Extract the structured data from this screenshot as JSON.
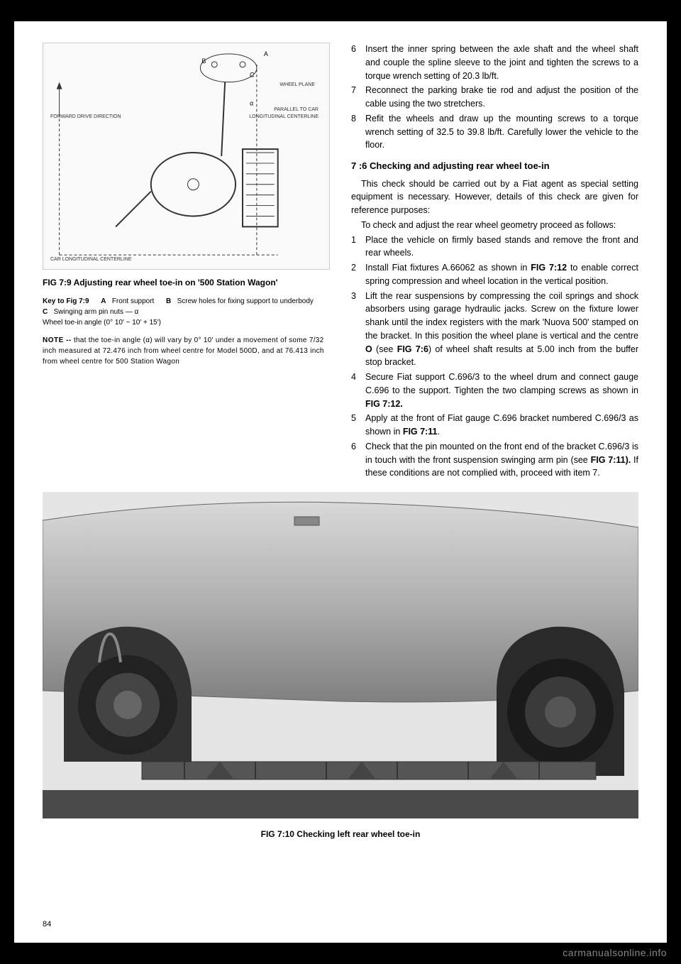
{
  "fig79": {
    "diagram_labels": {
      "wheel_plane": "WHEEL PLANE",
      "parallel": "PARALLEL TO CAR",
      "long_centerline": "LONGITUDINAL CENTERLINE",
      "forward": "FORWARD DRIVE DIRECTION",
      "car_long": "CAR LONGITUDINAL CENTERLINE",
      "a": "A",
      "b": "B",
      "c": "C"
    },
    "caption": "FIG 7:9   Adjusting rear wheel toe-in on '500 Station Wagon'",
    "key_prefix": "Key to Fig 7:9",
    "key_a_label": "A",
    "key_a_text": "Front support",
    "key_b_label": "B",
    "key_b_text": "Screw holes for fixing support to underbody",
    "key_c_label": "C",
    "key_c_text": "Swinging arm pin nuts — α",
    "key_wheel": "Wheel toe-in angle (0° 10′ − 10′ + 15′)",
    "note_label": "NOTE --",
    "note_text": "that the toe-in angle (α) will vary by 0° 10' under a movement of some 7/32 inch measured at 72.476 inch from wheel centre for Model 500D, and at 76.413 inch from wheel centre for 500 Station Wagon"
  },
  "right_column": {
    "items_top": [
      {
        "num": "6",
        "text": "Insert the inner spring between the axle shaft and the wheel shaft and couple the spline sleeve to the joint and tighten the screws to a torque wrench setting of 20.3 lb/ft."
      },
      {
        "num": "7",
        "text": "Reconnect the parking brake tie rod and adjust the position of the cable using the two stretchers."
      },
      {
        "num": "8",
        "text": "Refit the wheels and draw up the mounting screws to a torque wrench setting of 32.5 to 39.8 lb/ft. Carefully lower the vehicle to the floor."
      }
    ],
    "section_head": "7 :6   Checking and adjusting rear wheel toe-in",
    "intro1": "This check should be carried out by a Fiat agent as special setting equipment is necessary. However, details of this check are given for reference purposes:",
    "intro2": "To check and adjust the rear wheel geometry proceed as follows:",
    "items_bottom": [
      {
        "num": "1",
        "text": "Place the vehicle on firmly based stands and remove the front and rear wheels."
      },
      {
        "num": "2",
        "text_parts": [
          "Install Fiat fixtures A.66062 as shown in ",
          {
            "b": "FIG 7:12"
          },
          " to enable correct spring compression and wheel location in the vertical position."
        ]
      },
      {
        "num": "3",
        "text_parts": [
          "Lift the rear suspensions by compressing the coil springs and shock absorbers using garage hydraulic jacks. Screw on the fixture lower shank until the index registers with the mark 'Nuova 500' stamped on the bracket. In this position the wheel plane is vertical and the centre ",
          {
            "b": "O"
          },
          " (see ",
          {
            "b": "FIG 7:6"
          },
          ") of wheel shaft results at 5.00 inch from the buffer stop bracket."
        ]
      },
      {
        "num": "4",
        "text_parts": [
          "Secure Fiat support C.696/3 to the wheel drum and connect gauge C.696 to the support. Tighten the two clamping screws as shown in ",
          {
            "b": "FIG 7:12."
          }
        ]
      },
      {
        "num": "5",
        "text_parts": [
          "Apply at the front of Fiat gauge C.696 bracket numbered C.696/3 as shown in ",
          {
            "b": "FIG 7:11"
          },
          "."
        ]
      },
      {
        "num": "6",
        "text_parts": [
          "Check that the pin mounted on the front end of the bracket C.696/3 is in touch with the front suspension swinging arm pin (see ",
          {
            "b": "FIG 7:11)."
          },
          " If these conditions are not complied with, proceed with item 7."
        ]
      }
    ]
  },
  "fig710": {
    "caption": "FIG 7:10    Checking left rear wheel toe-in"
  },
  "page_number": "84",
  "watermark": "carmanualsonline.info"
}
